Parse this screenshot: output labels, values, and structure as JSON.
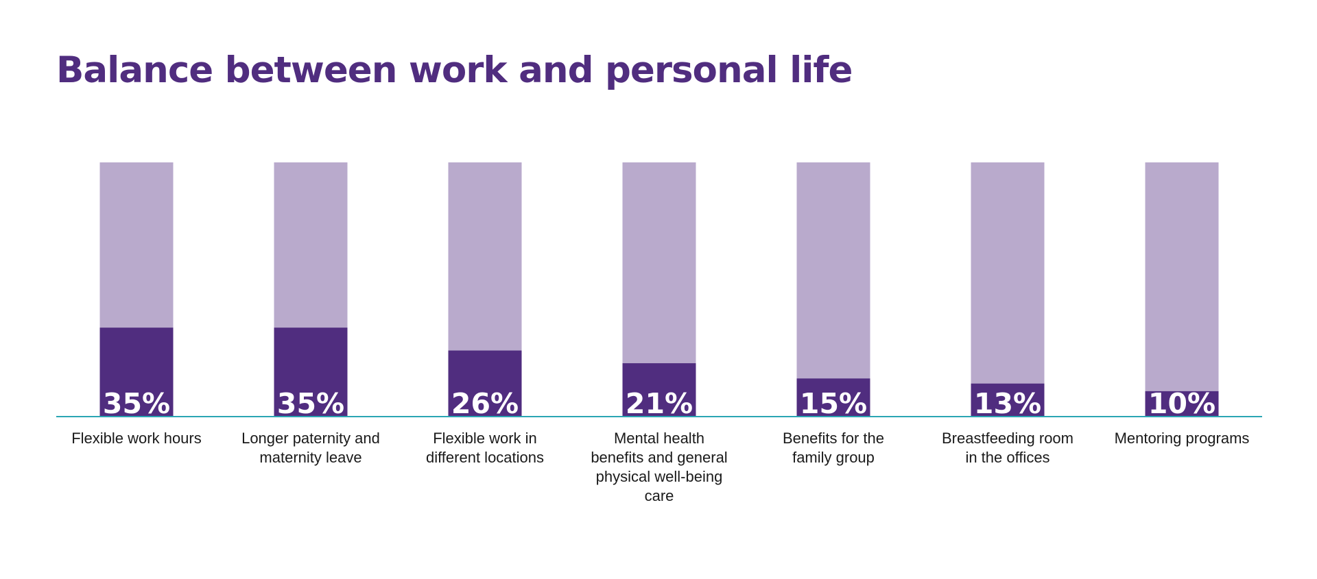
{
  "colors": {
    "title": "#502d7f",
    "bar_value": "#502d7f",
    "bar_background": "#b9aacc",
    "baseline": "#2aa6b3",
    "value_text": "#ffffff",
    "category_text": "#1a1a1a"
  },
  "chart_data": {
    "type": "bar",
    "title": "Balance between work and personal life",
    "xlabel": "",
    "ylabel": "",
    "ylim": [
      0,
      100
    ],
    "grid": false,
    "legend": "none",
    "categories": [
      [
        "Flexible work hours"
      ],
      [
        "Longer paternity and",
        "maternity leave"
      ],
      [
        "Flexible work in",
        "different locations"
      ],
      [
        "Mental health",
        "benefits and general",
        "physical well-being",
        "care"
      ],
      [
        "Benefits for the",
        "family group"
      ],
      [
        "Breastfeeding room",
        "in the offices"
      ],
      [
        "Mentoring programs"
      ]
    ],
    "values": [
      35,
      35,
      26,
      21,
      15,
      13,
      10
    ],
    "data_labels": [
      "35%",
      "35%",
      "26%",
      "21%",
      "15%",
      "13%",
      "10%"
    ]
  }
}
